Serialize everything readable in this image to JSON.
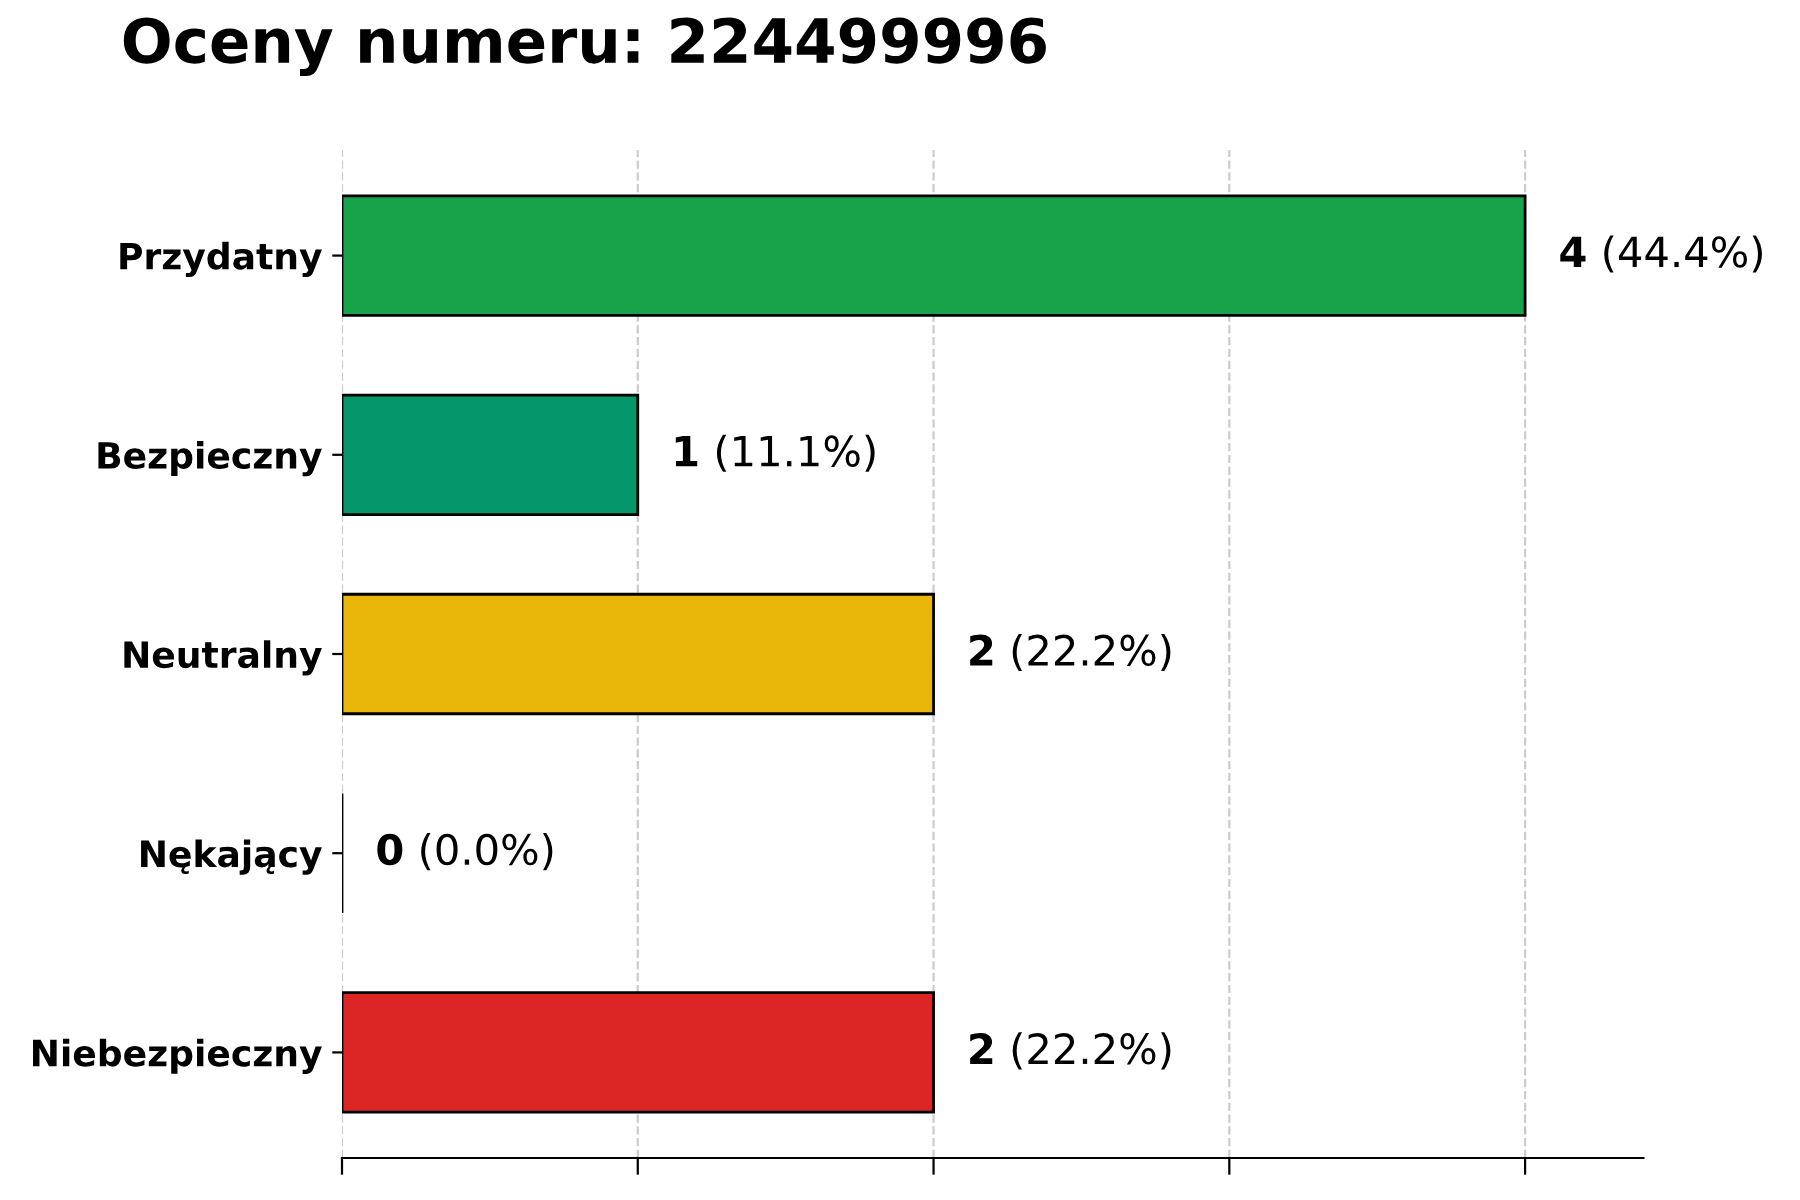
{
  "chart_data": {
    "type": "bar",
    "orientation": "horizontal",
    "title": "Oceny numeru: 224499996",
    "categories": [
      "Przydatny",
      "Bezpieczny",
      "Neutralny",
      "Nękający",
      "Niebezpieczny"
    ],
    "values": [
      4,
      1,
      2,
      0,
      2
    ],
    "colors": [
      "#17a34a",
      "#05976a",
      "#e8b509",
      "#000000",
      "#dc2626"
    ],
    "value_labels": [
      "4 (44.4%)",
      "1 (11.1%)",
      "2 (22.2%)",
      "0 (0.0%)",
      "2 (22.2%)"
    ],
    "xlim": [
      0,
      4.4
    ],
    "xticks": [
      {
        "value": 0,
        "label": null
      },
      {
        "value": 1,
        "label": null
      },
      {
        "value": 2,
        "label": null
      },
      {
        "value": 3,
        "label": null
      },
      {
        "value": 4,
        "label": null
      }
    ],
    "tick_labels": "y",
    "grid": "x",
    "legend": false
  }
}
